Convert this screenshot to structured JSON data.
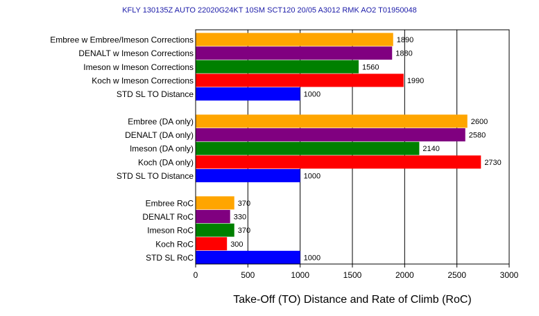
{
  "chart_data": {
    "type": "bar",
    "orientation": "horizontal",
    "title": "KFLY 130135Z AUTO 22020G24KT 10SM SCT120 20/05 A3012 RMK AO2 T01950048",
    "xlabel": "Take-Off (TO) Distance and Rate of Climb (RoC)",
    "ylabel": "",
    "xlim": [
      0,
      3000
    ],
    "xticks": [
      "0",
      "500",
      "1000",
      "1500",
      "2000",
      "2500",
      "3000"
    ],
    "grid": "vertical lines at x ticks",
    "legend": "none",
    "groups": [
      {
        "bars": [
          {
            "label": "Embree w Embree/Imeson Corrections",
            "value": 1890,
            "value_label": "1890",
            "color": "#ffa500"
          },
          {
            "label": "DENALT w Imeson Corrections",
            "value": 1880,
            "value_label": "1880",
            "color": "#800080"
          },
          {
            "label": "Imeson w Imeson Corrections",
            "value": 1560,
            "value_label": "1560",
            "color": "#008000"
          },
          {
            "label": "Koch w Imeson Corrections",
            "value": 1990,
            "value_label": "1990",
            "color": "#ff0000"
          },
          {
            "label": "STD SL TO Distance",
            "value": 1000,
            "value_label": "1000",
            "color": "#0000ff"
          }
        ]
      },
      {
        "bars": [
          {
            "label": "Embree (DA only)",
            "value": 2600,
            "value_label": "2600",
            "color": "#ffa500"
          },
          {
            "label": "DENALT (DA only)",
            "value": 2580,
            "value_label": "2580",
            "color": "#800080"
          },
          {
            "label": "Imeson (DA only)",
            "value": 2140,
            "value_label": "2140",
            "color": "#008000"
          },
          {
            "label": "Koch (DA only)",
            "value": 2730,
            "value_label": "2730",
            "color": "#ff0000"
          },
          {
            "label": "STD SL TO Distance",
            "value": 1000,
            "value_label": "1000",
            "color": "#0000ff"
          }
        ]
      },
      {
        "bars": [
          {
            "label": "Embree RoC",
            "value": 370,
            "value_label": "370",
            "color": "#ffa500"
          },
          {
            "label": "DENALT RoC",
            "value": 330,
            "value_label": "330",
            "color": "#800080"
          },
          {
            "label": "Imeson RoC",
            "value": 370,
            "value_label": "370",
            "color": "#008000"
          },
          {
            "label": "Koch RoC",
            "value": 300,
            "value_label": "300",
            "color": "#ff0000"
          },
          {
            "label": "STD SL RoC",
            "value": 1000,
            "value_label": "1000",
            "color": "#0000ff"
          }
        ]
      }
    ]
  }
}
